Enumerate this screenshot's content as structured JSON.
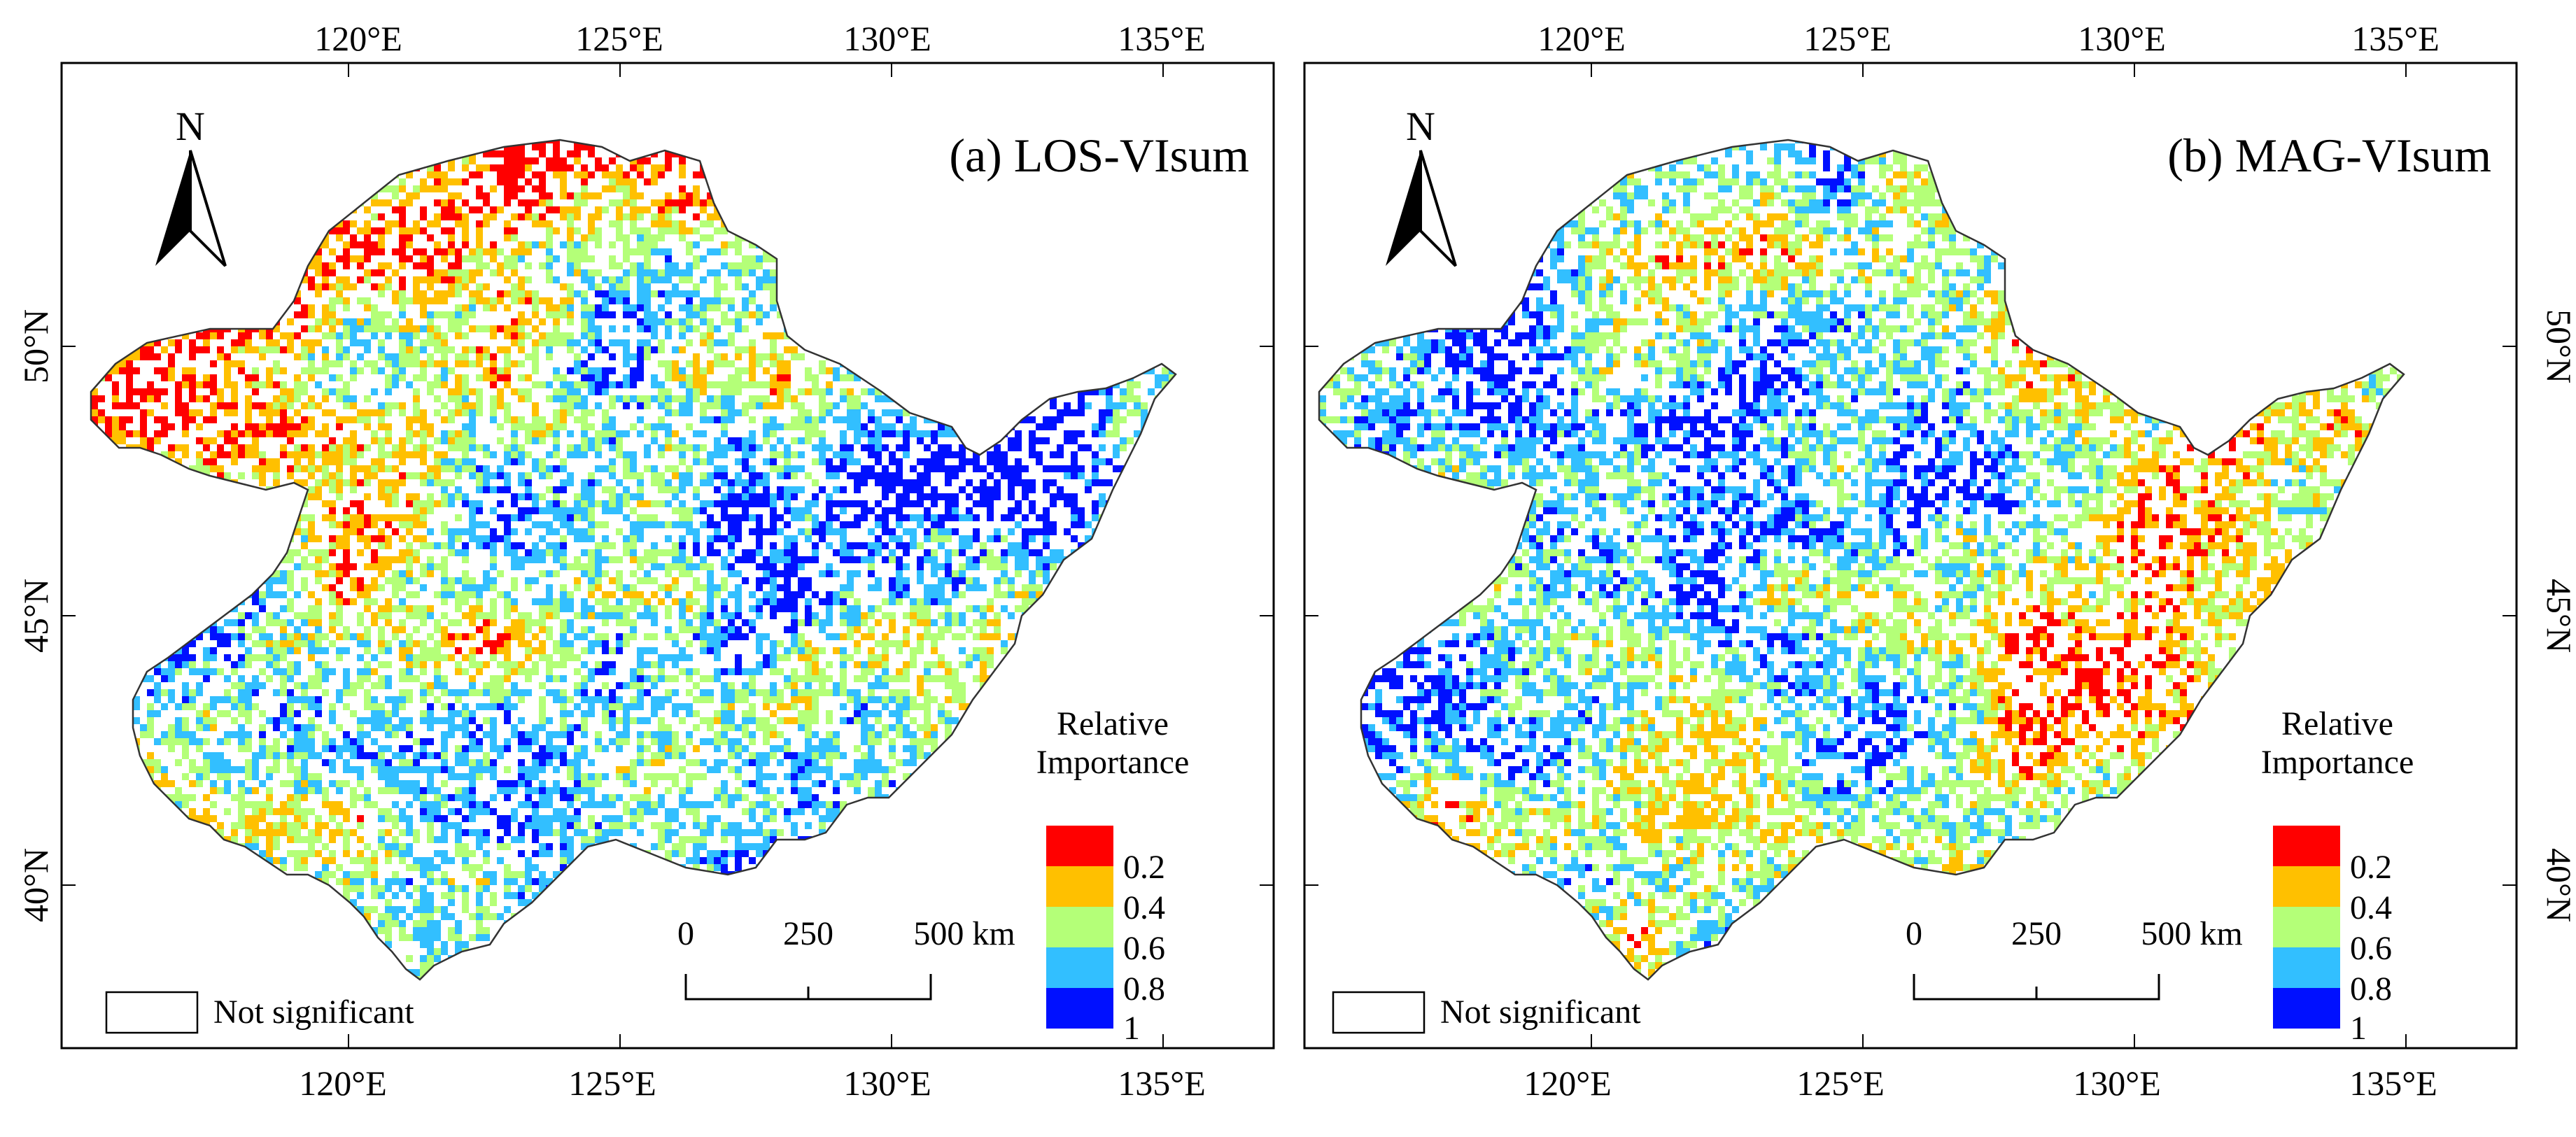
{
  "colors": {
    "class1": "#ff0000",
    "class2": "#ffc000",
    "class3": "#b4ff78",
    "class4": "#32bfff",
    "class5": "#0010ff",
    "outline": "#333333",
    "frame": "#000000"
  },
  "axes": {
    "lon_ticks": [
      "120°E",
      "125°E",
      "130°E",
      "135°E"
    ],
    "lat_ticks": [
      "50°N",
      "45°N",
      "40°N"
    ]
  },
  "north_label": "N",
  "panels": [
    {
      "title": "(a) LOS-VIsum",
      "dominant_pattern": "orange-red in north-center and west, blue in south-east and south",
      "legend": {
        "title_line1": "Relative",
        "title_line2": "Importance",
        "labels": [
          "0.2",
          "0.4",
          "0.6",
          "0.8",
          "1"
        ],
        "not_significant": "Not significant"
      },
      "scale": {
        "labels": [
          "0",
          "250",
          "500 km"
        ]
      }
    },
    {
      "title": "(b) MAG-VIsum",
      "dominant_pattern": "blue/cyan in north and west, red/orange in south and south-east",
      "legend": {
        "title_line1": "Relative",
        "title_line2": "Importance",
        "labels": [
          "0.2",
          "0.4",
          "0.6",
          "0.8",
          "1"
        ],
        "not_significant": "Not significant"
      },
      "scale": {
        "labels": [
          "0",
          "250",
          "500 km"
        ]
      }
    }
  ]
}
